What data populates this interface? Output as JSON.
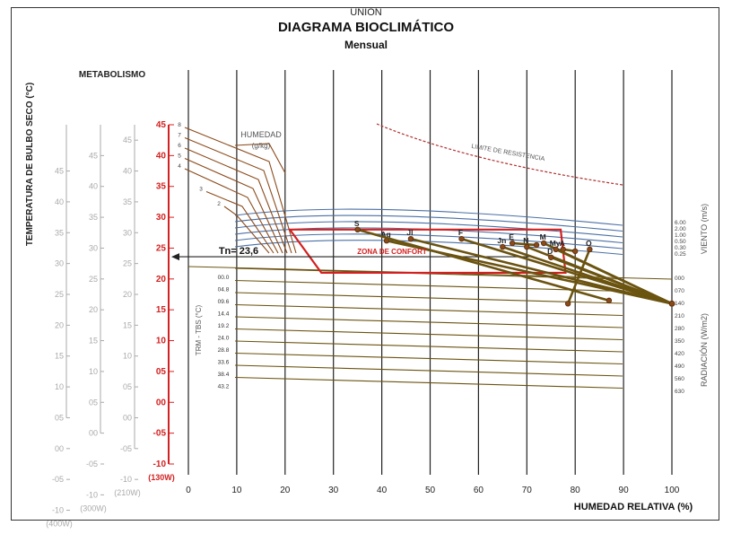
{
  "titles": {
    "site": "UNION",
    "main": "DIAGRAMA BIOCLIMÁTICO",
    "sub": "Mensual"
  },
  "labels": {
    "temp_axis": "TEMPERATURA DE BULBO SECO (°C)",
    "metabolism": "METABOLISMO",
    "humidity_g": "HUMEDAD",
    "humidity_unit": "(g/kg)",
    "limit": "LIMITE DE RESISTENCIA",
    "comfort": "ZONA DE CONFORT",
    "tn": "Tn= 23,6",
    "trm": "TRM - TBS (°C)",
    "wind": "VIENTO (m/s)",
    "radiation": "RADIACIÓN (W/m2)",
    "x_axis": "HUMEDAD RELATIVA (%)"
  },
  "colors": {
    "grid": "#222222",
    "gray_axis": "#aaaaaa",
    "red_axis": "#d42020",
    "brown": "#8b4a1a",
    "olive": "#6b5310",
    "blue": "#4a6fa5",
    "limit": "#b03030"
  },
  "chart_data": {
    "type": "line",
    "xlabel": "HUMEDAD RELATIVA (%)",
    "ylabel": "TEMPERATURA DE BULBO SECO (°C)",
    "xlim": [
      0,
      100
    ],
    "ylim": [
      -10,
      45
    ],
    "x_ticks": [
      0,
      10,
      20,
      30,
      40,
      50,
      60,
      70,
      80,
      90,
      100
    ],
    "y_ticks_red": [
      "45",
      "40",
      "35",
      "30",
      "25",
      "20",
      "15",
      "10",
      "05",
      "00",
      "-05",
      "-10"
    ],
    "y_ticks_gray": [
      "45",
      "40",
      "35",
      "30",
      "25",
      "20",
      "15",
      "10",
      "05",
      "00",
      "-05",
      "-10"
    ],
    "metabolism_axes": [
      {
        "label": "(130W)",
        "offset": 0,
        "color": "#d42020"
      },
      {
        "label": "(210W)",
        "offset": 2.5,
        "color": "#aaaaaa"
      },
      {
        "label": "(300W)",
        "offset": 5,
        "color": "#aaaaaa"
      },
      {
        "label": "(400W)",
        "offset": 7.5,
        "color": "#aaaaaa"
      }
    ],
    "humidity_lines": [
      "8",
      "7",
      "6",
      "5",
      "4",
      "3",
      "2"
    ],
    "wind_labels": [
      "6.00",
      "2.00",
      "1.00",
      "0.50",
      "0.30",
      "0.25"
    ],
    "radiation_labels": [
      "000",
      "070",
      "140",
      "210",
      "280",
      "350",
      "420",
      "490",
      "560",
      "630"
    ],
    "trm_labels": [
      "00.0",
      "04.8",
      "09.6",
      "14.4",
      "19.2",
      "24.0",
      "28.8",
      "33.6",
      "38.4",
      "43.2"
    ],
    "comfort_zone": [
      [
        21,
        28
      ],
      [
        77,
        28
      ],
      [
        78,
        21
      ],
      [
        27.5,
        21
      ],
      [
        21,
        28
      ]
    ],
    "tn": 23.6,
    "months": [
      {
        "label": "E",
        "rh_max": 72,
        "t_min": 25.5,
        "rh_min": 67,
        "t_max": 25.8
      },
      {
        "label": "F",
        "rh_max": 100,
        "t_min": 16,
        "rh_min": 56.5,
        "t_max": 26.5
      },
      {
        "label": "M",
        "rh_max": 100,
        "t_min": 16,
        "rh_min": 73.5,
        "t_max": 25.8
      },
      {
        "label": "A",
        "rh_max": 80,
        "t_min": 24.5,
        "rh_min": 77.5,
        "t_max": 24.8
      },
      {
        "label": "My",
        "rh_max": 100,
        "t_min": 16,
        "rh_min": 76,
        "t_max": 24.8
      },
      {
        "label": "Jn",
        "rh_max": 100,
        "t_min": 16,
        "rh_min": 65,
        "t_max": 25.2
      },
      {
        "label": "Jl",
        "rh_max": 100,
        "t_min": 16,
        "rh_min": 46,
        "t_max": 26.5
      },
      {
        "label": "Ag",
        "rh_max": 100,
        "t_min": 16,
        "rh_min": 41,
        "t_max": 26.2
      },
      {
        "label": "S",
        "rh_max": 87,
        "t_min": 16.5,
        "rh_min": 35,
        "t_max": 28
      },
      {
        "label": "O",
        "rh_max": 78.5,
        "t_min": 16,
        "rh_min": 83,
        "t_max": 24.8
      },
      {
        "label": "N",
        "rh_max": 100,
        "t_min": 16,
        "rh_min": 70,
        "t_max": 25.2
      },
      {
        "label": "D",
        "rh_max": 100,
        "t_min": 16,
        "rh_min": 75,
        "t_max": 23.5
      }
    ]
  }
}
